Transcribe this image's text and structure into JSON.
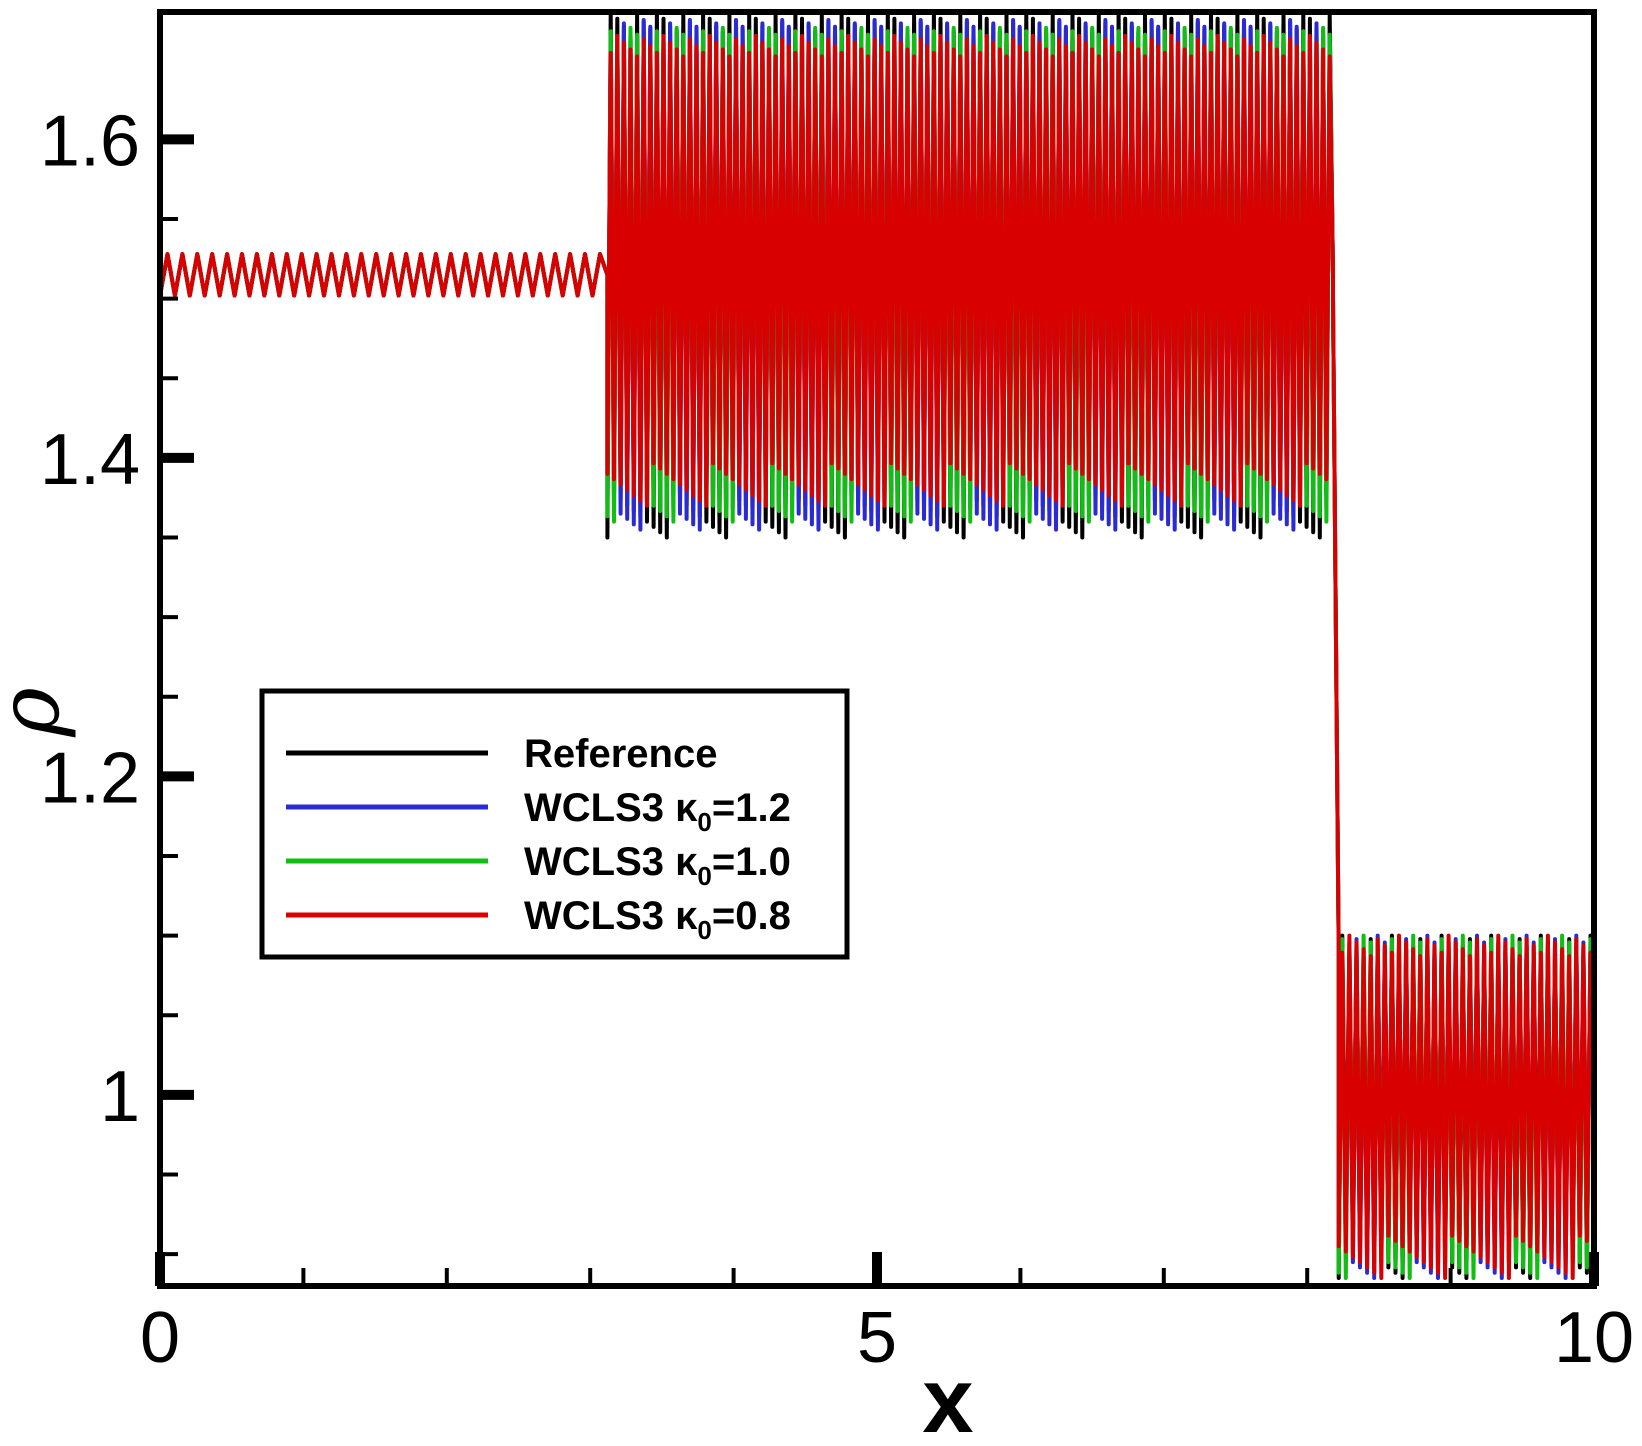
{
  "chart_data": {
    "type": "line",
    "title": "",
    "xlabel": "x",
    "ylabel": "ρ",
    "xlim": [
      0,
      10
    ],
    "ylim": [
      0.88,
      1.68
    ],
    "x_ticks": [
      {
        "value": 0,
        "label": "0"
      },
      {
        "value": 5,
        "label": "5"
      },
      {
        "value": 10,
        "label": "10"
      }
    ],
    "y_ticks": [
      {
        "value": 1.0,
        "label": "1"
      },
      {
        "value": 1.2,
        "label": "1.2"
      },
      {
        "value": 1.4,
        "label": "1.4"
      },
      {
        "value": 1.6,
        "label": "1.6"
      }
    ],
    "grid": false,
    "legend_position": "center-left",
    "series": [
      {
        "name": "Reference",
        "label_main": "Reference",
        "label_sub": "",
        "label_tail": "",
        "color": "#000000",
        "regions": [
          {
            "x0": 0.0,
            "x1": 3.12,
            "mean": 1.515,
            "amp": 0.013,
            "cycles": 30
          },
          {
            "x0": 3.12,
            "x1": 8.18,
            "min": 1.35,
            "max": 1.68,
            "cycles": 110
          },
          {
            "x0": 8.18,
            "x1": 8.22,
            "from": 1.5,
            "to": 1.09
          },
          {
            "x0": 8.22,
            "x1": 10.0,
            "min": 0.885,
            "max": 1.1,
            "cycles": 36
          }
        ]
      },
      {
        "name": "WCLS3 κ0=1.2",
        "label_main": "WCLS3 κ",
        "label_sub": "0",
        "label_tail": "=1.2",
        "color": "#2b2bd6",
        "regions": [
          {
            "x0": 0.0,
            "x1": 3.12,
            "mean": 1.515,
            "amp": 0.013,
            "cycles": 30
          },
          {
            "x0": 3.12,
            "x1": 8.18,
            "min": 1.355,
            "max": 1.675,
            "cycles": 110
          },
          {
            "x0": 8.18,
            "x1": 8.22,
            "from": 1.5,
            "to": 1.09
          },
          {
            "x0": 8.22,
            "x1": 10.0,
            "min": 0.885,
            "max": 1.1,
            "cycles": 36
          }
        ]
      },
      {
        "name": "WCLS3 κ0=1.0",
        "label_main": "WCLS3 κ",
        "label_sub": "0",
        "label_tail": "=1.0",
        "color": "#10c010",
        "regions": [
          {
            "x0": 0.0,
            "x1": 3.12,
            "mean": 1.515,
            "amp": 0.013,
            "cycles": 30
          },
          {
            "x0": 3.12,
            "x1": 8.18,
            "min": 1.36,
            "max": 1.67,
            "cycles": 110
          },
          {
            "x0": 8.18,
            "x1": 8.22,
            "from": 1.5,
            "to": 1.09
          },
          {
            "x0": 8.22,
            "x1": 10.0,
            "min": 0.885,
            "max": 1.1,
            "cycles": 36
          }
        ]
      },
      {
        "name": "WCLS3 κ0=0.8",
        "label_main": "WCLS3 κ",
        "label_sub": "0",
        "label_tail": "=0.8",
        "color": "#d80000",
        "regions": [
          {
            "x0": 0.0,
            "x1": 3.12,
            "mean": 1.515,
            "amp": 0.013,
            "cycles": 30
          },
          {
            "x0": 3.12,
            "x1": 8.18,
            "min": 1.37,
            "max": 1.665,
            "cycles": 110
          },
          {
            "x0": 8.18,
            "x1": 8.22,
            "from": 1.5,
            "to": 1.09
          },
          {
            "x0": 8.22,
            "x1": 10.0,
            "min": 0.885,
            "max": 1.1,
            "cycles": 36
          }
        ]
      }
    ]
  }
}
